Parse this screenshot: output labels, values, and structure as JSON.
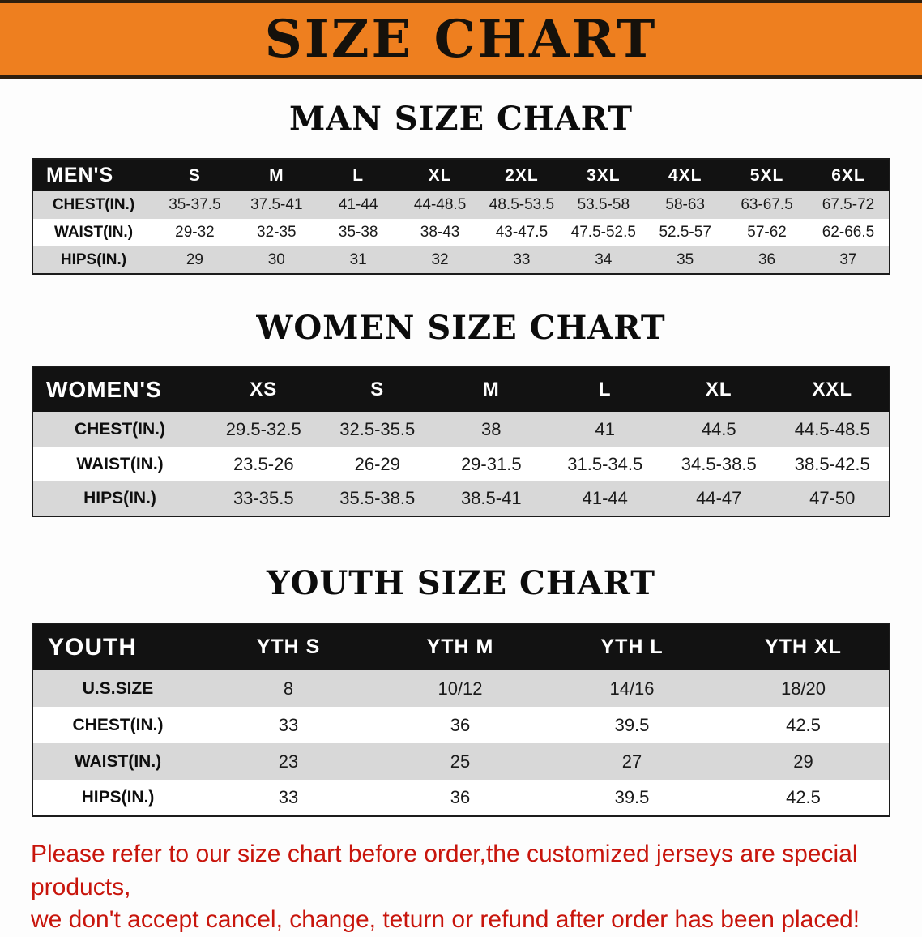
{
  "colors": {
    "banner-bg": "#ee7f1f",
    "banner-border": "#2e1f0e",
    "header-row-bg": "#121212",
    "row-gray": "#d8d8d8",
    "footer-red": "#c8150c"
  },
  "banner": {
    "title": "SIZE CHART"
  },
  "sections": [
    {
      "id": "men",
      "heading": "MAN SIZE CHART",
      "header": [
        "MEN'S",
        "S",
        "M",
        "L",
        "XL",
        "2XL",
        "3XL",
        "4XL",
        "5XL",
        "6XL"
      ],
      "rows": [
        [
          "CHEST(IN.)",
          "35-37.5",
          "37.5-41",
          "41-44",
          "44-48.5",
          "48.5-53.5",
          "53.5-58",
          "58-63",
          "63-67.5",
          "67.5-72"
        ],
        [
          "WAIST(IN.)",
          "29-32",
          "32-35",
          "35-38",
          "38-43",
          "43-47.5",
          "47.5-52.5",
          "52.5-57",
          "57-62",
          "62-66.5"
        ],
        [
          "HIPS(IN.)",
          "29",
          "30",
          "31",
          "32",
          "33",
          "34",
          "35",
          "36",
          "37"
        ]
      ]
    },
    {
      "id": "women",
      "heading": "WOMEN SIZE CHART",
      "header": [
        "WOMEN'S",
        "XS",
        "S",
        "M",
        "L",
        "XL",
        "XXL"
      ],
      "rows": [
        [
          "CHEST(IN.)",
          "29.5-32.5",
          "32.5-35.5",
          "38",
          "41",
          "44.5",
          "44.5-48.5"
        ],
        [
          "WAIST(IN.)",
          "23.5-26",
          "26-29",
          "29-31.5",
          "31.5-34.5",
          "34.5-38.5",
          "38.5-42.5"
        ],
        [
          "HIPS(IN.)",
          "33-35.5",
          "35.5-38.5",
          "38.5-41",
          "41-44",
          "44-47",
          "47-50"
        ]
      ]
    },
    {
      "id": "youth",
      "heading": "YOUTH SIZE CHART",
      "header": [
        "YOUTH",
        "YTH S",
        "YTH M",
        "YTH L",
        "YTH XL"
      ],
      "rows": [
        [
          "U.S.SIZE",
          "8",
          "10/12",
          "14/16",
          "18/20"
        ],
        [
          "CHEST(IN.)",
          "33",
          "36",
          "39.5",
          "42.5"
        ],
        [
          "WAIST(IN.)",
          "23",
          "25",
          "27",
          "29"
        ],
        [
          "HIPS(IN.)",
          "33",
          "36",
          "39.5",
          "42.5"
        ]
      ]
    }
  ],
  "footer": {
    "line1": "Please refer to our size chart before order,the customized jerseys are special products,",
    "line2": "we don't accept cancel, change, teturn or refund after order has been placed!"
  }
}
